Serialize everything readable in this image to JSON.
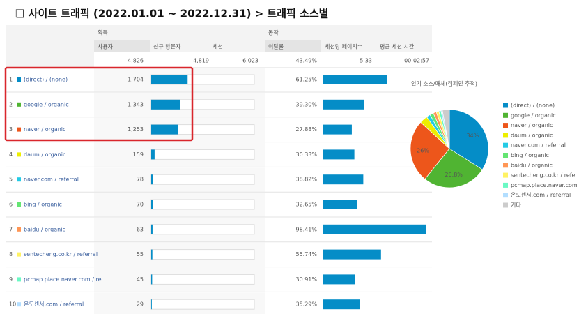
{
  "header": {
    "title": "❑ 사이트 트래픽 (2022.01.01 ~ 2022.12.31) > 트래픽 소스별"
  },
  "table": {
    "groups": [
      "획득",
      "동작"
    ],
    "columns": [
      "사용자",
      "신규 방문자",
      "세션",
      "이탈률",
      "세션당 페이지수",
      "평균 세션 시간"
    ],
    "totals": [
      {
        "value": 4826,
        "label": "4,826"
      },
      "4,819",
      "6,023",
      "43.49%",
      "5.33",
      "00:02:57"
    ],
    "rows": [
      {
        "rank": 1,
        "color": "#058dc7",
        "source": "(direct) / (none)",
        "users": {
          "value": 1704,
          "label": "1,704"
        },
        "bounce": {
          "value": 61.25,
          "label": "61.25%"
        }
      },
      {
        "rank": 2,
        "color": "#50b432",
        "source": "google / organic",
        "users": {
          "value": 1343,
          "label": "1,343"
        },
        "bounce": {
          "value": 39.3,
          "label": "39.30%"
        }
      },
      {
        "rank": 3,
        "color": "#ed561b",
        "source": "naver / organic",
        "users": {
          "value": 1253,
          "label": "1,253"
        },
        "bounce": {
          "value": 27.88,
          "label": "27.88%"
        }
      },
      {
        "rank": 4,
        "color": "#edef00",
        "source": "daum / organic",
        "users": {
          "value": 159,
          "label": "159"
        },
        "bounce": {
          "value": 30.33,
          "label": "30.33%"
        }
      },
      {
        "rank": 5,
        "color": "#24cbe5",
        "source": "naver.com / referral",
        "users": {
          "value": 78,
          "label": "78"
        },
        "bounce": {
          "value": 38.82,
          "label": "38.82%"
        }
      },
      {
        "rank": 6,
        "color": "#64e572",
        "source": "bing / organic",
        "users": {
          "value": 70,
          "label": "70"
        },
        "bounce": {
          "value": 32.65,
          "label": "32.65%"
        }
      },
      {
        "rank": 7,
        "color": "#ff9655",
        "source": "baidu / organic",
        "users": {
          "value": 63,
          "label": "63"
        },
        "bounce": {
          "value": 98.41,
          "label": "98.41%"
        }
      },
      {
        "rank": 8,
        "color": "#fff263",
        "source": "sentecheng.co.kr / referral",
        "users": {
          "value": 55,
          "label": "55"
        },
        "bounce": {
          "value": 55.74,
          "label": "55.74%"
        }
      },
      {
        "rank": 9,
        "color": "#6af9c4",
        "source": "pcmap.place.naver.com / re",
        "users": {
          "value": 45,
          "label": "45"
        },
        "bounce": {
          "value": 30.91,
          "label": "30.91%"
        }
      },
      {
        "rank": 10,
        "color": "#b2deff",
        "source": "온도센서.com / referral",
        "users": {
          "value": 29,
          "label": "29"
        },
        "bounce": {
          "value": 35.29,
          "label": "35.29%"
        }
      }
    ]
  },
  "chart_data": {
    "type": "pie",
    "title": "인기 소스/매체(캠페인 추적)",
    "categories": [
      "(direct) / (none)",
      "google / organic",
      "naver / organic",
      "daum / organic",
      "naver.com / referral",
      "bing / organic",
      "baidu / organic",
      "sentecheng.co.kr / refe",
      "pcmap.place.naver.com",
      "온도센서.com / referral",
      "기타"
    ],
    "colors": [
      "#058dc7",
      "#50b432",
      "#ed561b",
      "#edef00",
      "#24cbe5",
      "#64e572",
      "#ff9655",
      "#fff263",
      "#6af9c4",
      "#b2deff",
      "#cccccc"
    ],
    "values": [
      34,
      26.8,
      26,
      3.3,
      1.6,
      1.5,
      1.3,
      1.1,
      0.9,
      0.6,
      2.9
    ],
    "value_labels": [
      "34%",
      "26.8%",
      "26%",
      null,
      null,
      null,
      null,
      null,
      null,
      null,
      null
    ]
  }
}
